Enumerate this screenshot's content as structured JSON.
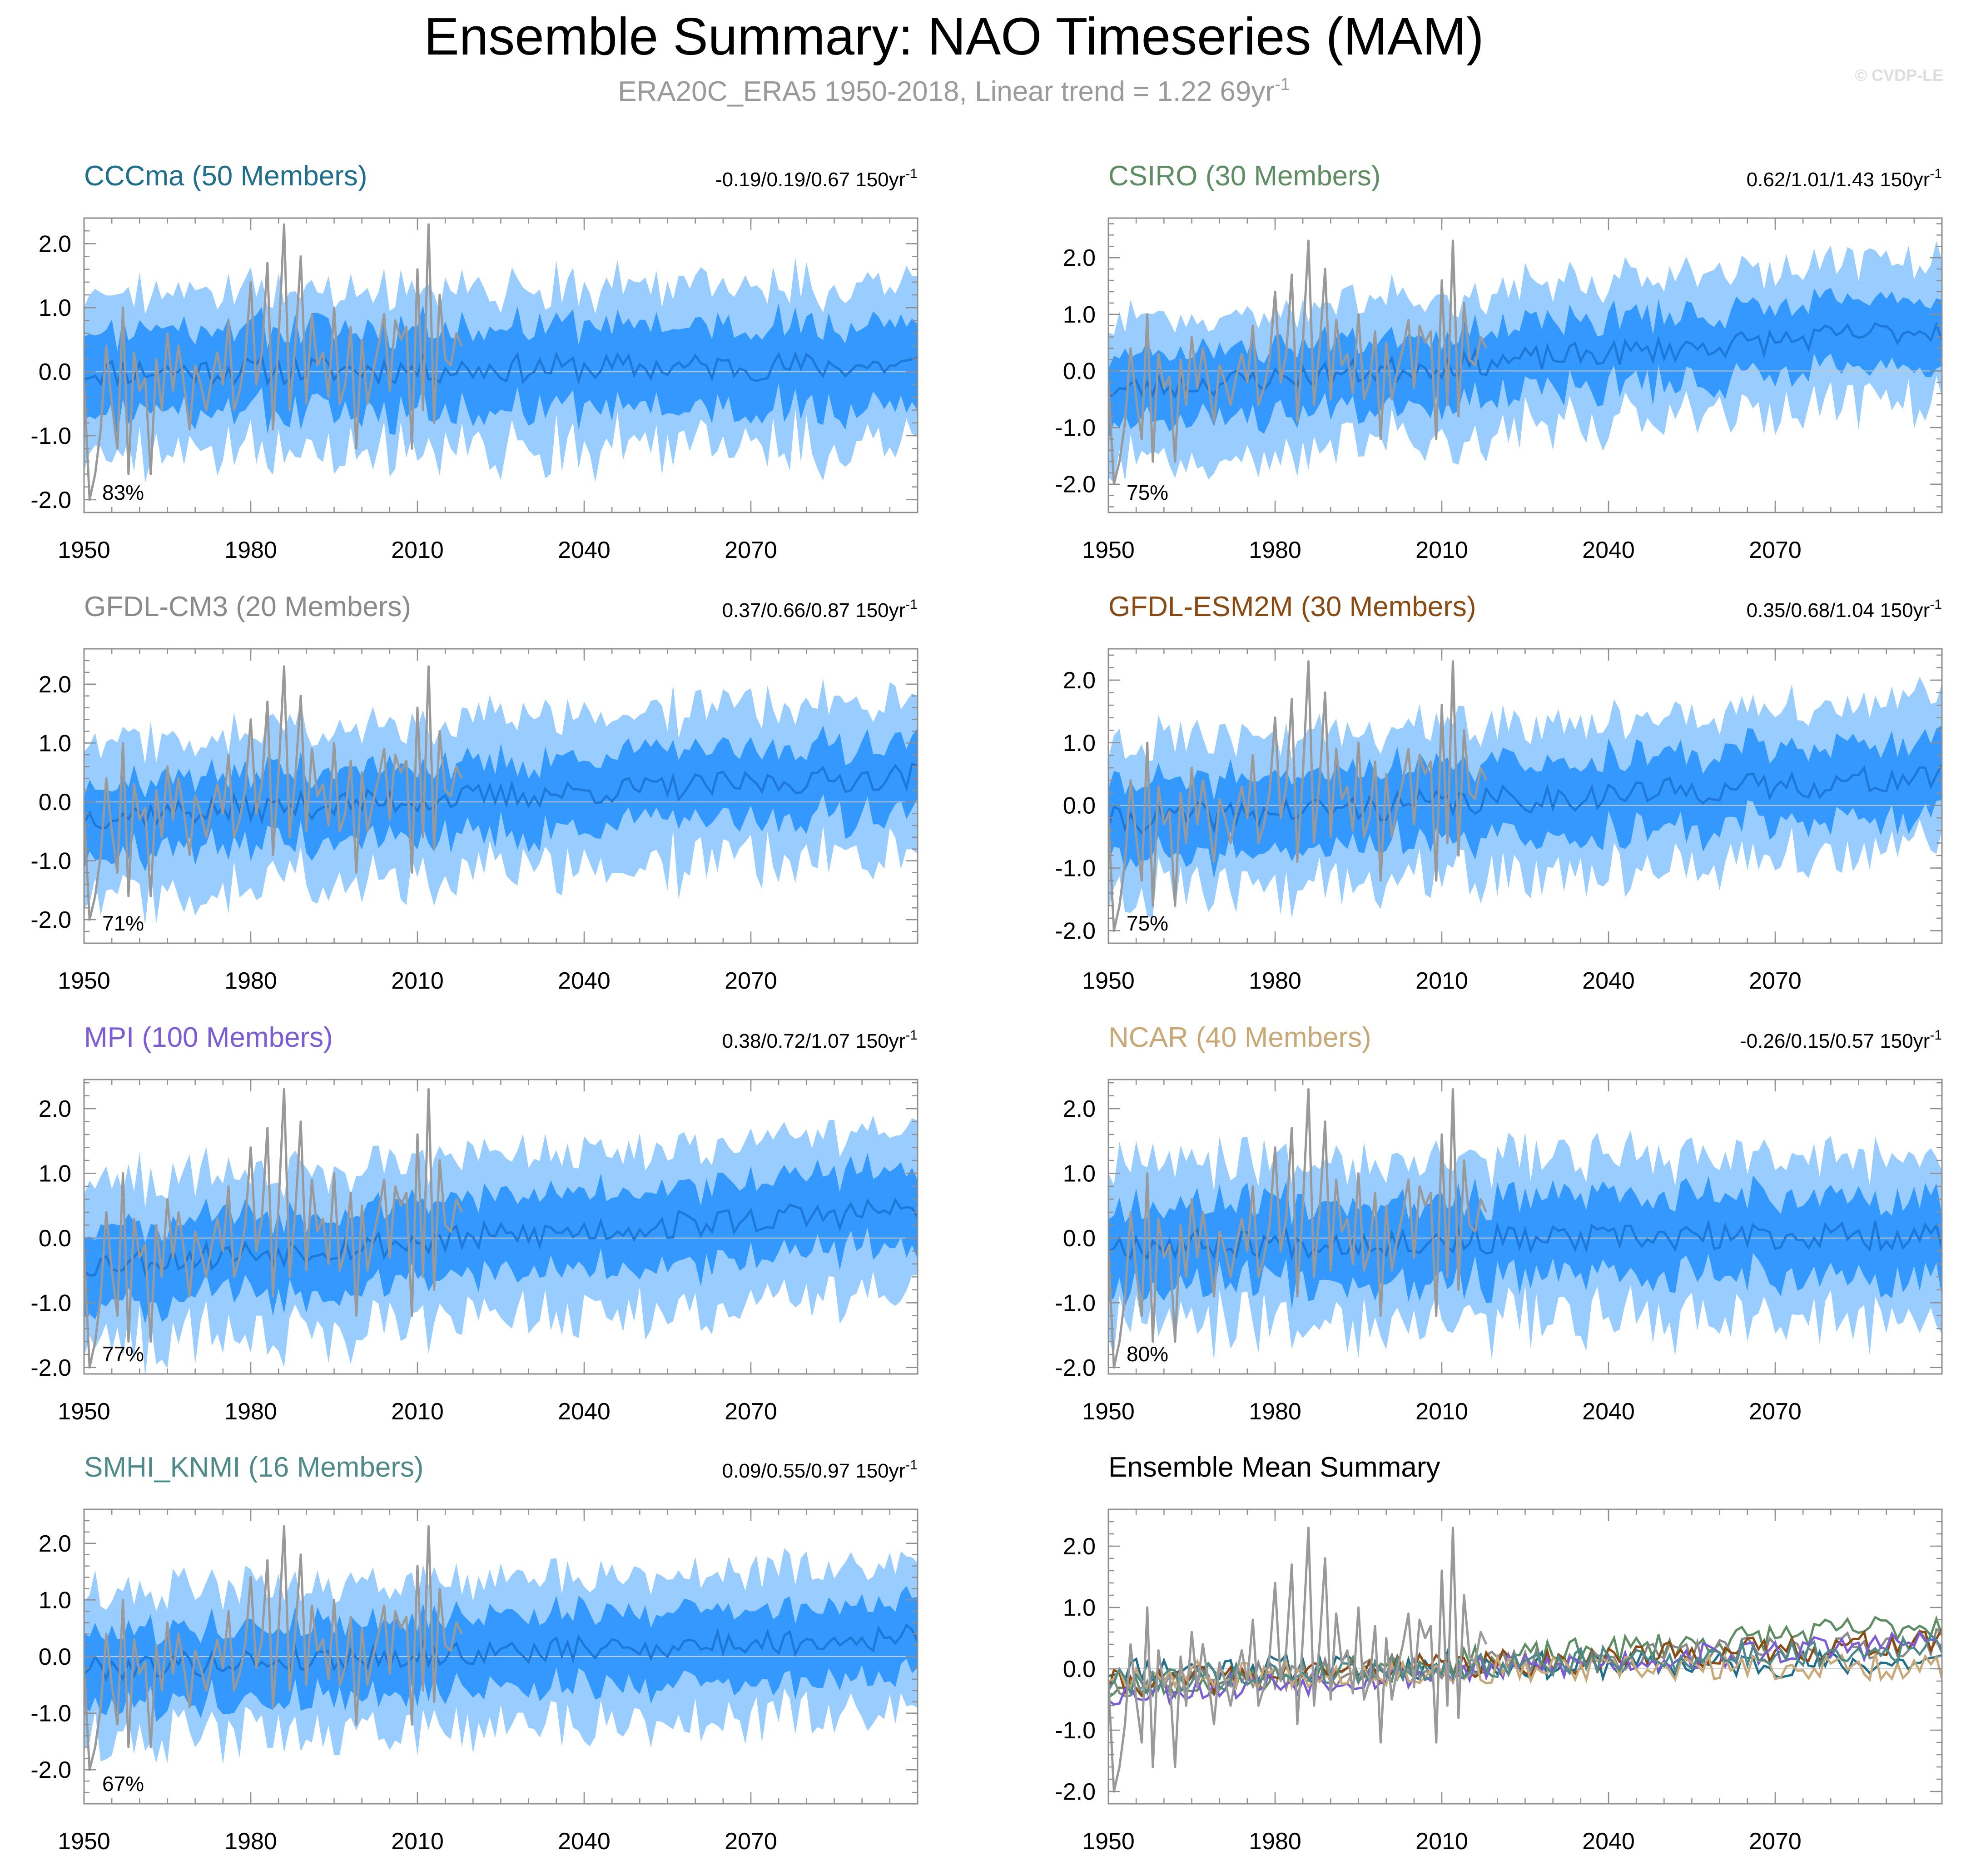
{
  "title": "Ensemble Summary: NAO Timeseries (MAM)",
  "subtitle": "ERA20C_ERA5 1950-2018, Linear trend = 1.22 69yr",
  "subtitle_sup": "-1",
  "watermark": "© CVDP-LE",
  "colors": {
    "outer_band": "#99ccff",
    "inner_band": "#3399ff",
    "ensemble_mean": "#1e78d8",
    "observations": "#999999",
    "zero_line": "#c8c8c8"
  },
  "chart_data": [
    {
      "type": "area",
      "name": "CCCma",
      "title": "CCCma (50 Members)",
      "title_color": "#1f6e8c",
      "stats": "-0.19/0.19/0.67 150yr",
      "stats_sup": "-1",
      "percent_label": "83%",
      "x_range": [
        1950,
        2100
      ],
      "ylim": [
        -2.2,
        2.4
      ],
      "yticks": [
        2.0,
        1.0,
        0.0,
        -1.0,
        -2.0
      ],
      "ytick_labels": [
        "2.0",
        "1.0",
        "0.0",
        "-1.0",
        "-2.0"
      ],
      "xticks": [
        1950,
        1980,
        2010,
        2040,
        2070
      ],
      "xtick_labels": [
        "1950",
        "1980",
        "2010",
        "2040",
        "2070"
      ],
      "trend_start": 0.0,
      "trend_end": 0.1,
      "inner_halfwidth": 0.65,
      "outer_halfwidth": 1.25,
      "seed": 11
    },
    {
      "type": "area",
      "name": "CSIRO",
      "title": "CSIRO (30 Members)",
      "title_color": "#5e8c63",
      "stats": "0.62/1.01/1.43 150yr",
      "stats_sup": "-1",
      "percent_label": "75%",
      "x_range": [
        1950,
        2100
      ],
      "ylim": [
        -2.5,
        2.7
      ],
      "yticks": [
        2.0,
        1.0,
        0.0,
        -1.0,
        -2.0
      ],
      "ytick_labels": [
        "2.0",
        "1.0",
        "0.0",
        "-1.0",
        "-2.0"
      ],
      "xticks": [
        1950,
        1980,
        2010,
        2040,
        2070
      ],
      "xtick_labels": [
        "1950",
        "1980",
        "2010",
        "2040",
        "2070"
      ],
      "trend_start": -0.35,
      "trend_end": 0.75,
      "inner_halfwidth": 0.6,
      "outer_halfwidth": 1.25,
      "seed": 23
    },
    {
      "type": "area",
      "name": "GFDL-CM3",
      "title": "GFDL-CM3 (20 Members)",
      "title_color": "#8a8a8a",
      "stats": "0.37/0.66/0.87 150yr",
      "stats_sup": "-1",
      "percent_label": "71%",
      "x_range": [
        1950,
        2100
      ],
      "ylim": [
        -2.4,
        2.6
      ],
      "yticks": [
        2.0,
        1.0,
        0.0,
        -1.0,
        -2.0
      ],
      "ytick_labels": [
        "2.0",
        "1.0",
        "0.0",
        "-1.0",
        "-2.0"
      ],
      "xticks": [
        1950,
        1980,
        2010,
        2040,
        2070
      ],
      "xtick_labels": [
        "1950",
        "1980",
        "2010",
        "2040",
        "2070"
      ],
      "trend_start": -0.25,
      "trend_end": 0.45,
      "inner_halfwidth": 0.6,
      "outer_halfwidth": 1.3,
      "seed": 37
    },
    {
      "type": "area",
      "name": "GFDL-ESM2M",
      "title": "GFDL-ESM2M (30 Members)",
      "title_color": "#8b4a12",
      "stats": "0.35/0.68/1.04 150yr",
      "stats_sup": "-1",
      "percent_label": "75%",
      "x_range": [
        1950,
        2100
      ],
      "ylim": [
        -2.2,
        2.5
      ],
      "yticks": [
        2.0,
        1.0,
        0.0,
        -1.0,
        -2.0
      ],
      "ytick_labels": [
        "2.0",
        "1.0",
        "0.0",
        "-1.0",
        "-2.0"
      ],
      "xticks": [
        1950,
        1980,
        2010,
        2040,
        2070
      ],
      "xtick_labels": [
        "1950",
        "1980",
        "2010",
        "2040",
        "2070"
      ],
      "trend_start": -0.25,
      "trend_end": 0.45,
      "inner_halfwidth": 0.6,
      "outer_halfwidth": 1.2,
      "seed": 41
    },
    {
      "type": "area",
      "name": "MPI",
      "title": "MPI (100 Members)",
      "title_color": "#7b5bd6",
      "stats": "0.38/0.72/1.07 150yr",
      "stats_sup": "-1",
      "percent_label": "77%",
      "x_range": [
        1950,
        2100
      ],
      "ylim": [
        -2.1,
        2.45
      ],
      "yticks": [
        2.0,
        1.0,
        0.0,
        -1.0,
        -2.0
      ],
      "ytick_labels": [
        "2.0",
        "1.0",
        "0.0",
        "-1.0",
        "-2.0"
      ],
      "xticks": [
        1950,
        1980,
        2010,
        2040,
        2070
      ],
      "xtick_labels": [
        "1950",
        "1980",
        "2010",
        "2040",
        "2070"
      ],
      "trend_start": -0.4,
      "trend_end": 0.45,
      "inner_halfwidth": 0.6,
      "outer_halfwidth": 1.25,
      "seed": 53
    },
    {
      "type": "area",
      "name": "NCAR",
      "title": "NCAR (40 Members)",
      "title_color": "#c9a878",
      "stats": "-0.26/0.15/0.57 150yr",
      "stats_sup": "-1",
      "percent_label": "80%",
      "x_range": [
        1950,
        2100
      ],
      "ylim": [
        -2.1,
        2.45
      ],
      "yticks": [
        2.0,
        1.0,
        0.0,
        -1.0,
        -2.0
      ],
      "ytick_labels": [
        "2.0",
        "1.0",
        "0.0",
        "-1.0",
        "-2.0"
      ],
      "xticks": [
        1950,
        1980,
        2010,
        2040,
        2070
      ],
      "xtick_labels": [
        "1950",
        "1980",
        "2010",
        "2040",
        "2070"
      ],
      "trend_start": -0.1,
      "trend_end": 0.05,
      "inner_halfwidth": 0.62,
      "outer_halfwidth": 1.25,
      "seed": 67
    },
    {
      "type": "area",
      "name": "SMHI_KNMI",
      "title": "SMHI_KNMI (16 Members)",
      "title_color": "#4f8a8b",
      "stats": "0.09/0.55/0.97 150yr",
      "stats_sup": "-1",
      "percent_label": "67%",
      "x_range": [
        1950,
        2100
      ],
      "ylim": [
        -2.6,
        2.6
      ],
      "yticks": [
        2.0,
        1.0,
        0.0,
        -1.0,
        -2.0
      ],
      "ytick_labels": [
        "2.0",
        "1.0",
        "0.0",
        "-1.0",
        "-2.0"
      ],
      "xticks": [
        1950,
        1980,
        2010,
        2040,
        2070
      ],
      "xtick_labels": [
        "1950",
        "1980",
        "2010",
        "2040",
        "2070"
      ],
      "trend_start": -0.2,
      "trend_end": 0.35,
      "inner_halfwidth": 0.65,
      "outer_halfwidth": 1.3,
      "seed": 79
    },
    {
      "type": "line",
      "name": "Ensemble Mean Summary",
      "title": "Ensemble Mean Summary",
      "title_color": "#000000",
      "x_range": [
        1950,
        2100
      ],
      "ylim": [
        -2.2,
        2.6
      ],
      "yticks": [
        2.0,
        1.0,
        0.0,
        -1.0,
        -2.0
      ],
      "ytick_labels": [
        "2.0",
        "1.0",
        "0.0",
        "-1.0",
        "-2.0"
      ],
      "xticks": [
        1950,
        1980,
        2010,
        2040,
        2070
      ],
      "xtick_labels": [
        "1950",
        "1980",
        "2010",
        "2040",
        "2070"
      ],
      "series": [
        {
          "name": "CCCma",
          "color": "#1f6e8c",
          "trend_start": 0.0,
          "trend_end": 0.1,
          "seed": 11
        },
        {
          "name": "CSIRO",
          "color": "#5e8c63",
          "trend_start": -0.35,
          "trend_end": 0.75,
          "seed": 23
        },
        {
          "name": "GFDL-CM3",
          "color": "#8a8a8a",
          "trend_start": -0.25,
          "trend_end": 0.45,
          "seed": 37
        },
        {
          "name": "GFDL-ESM2M",
          "color": "#8b4a12",
          "trend_start": -0.25,
          "trend_end": 0.45,
          "seed": 41
        },
        {
          "name": "MPI",
          "color": "#7b5bd6",
          "trend_start": -0.4,
          "trend_end": 0.45,
          "seed": 53
        },
        {
          "name": "NCAR",
          "color": "#c9a878",
          "trend_start": -0.1,
          "trend_end": 0.05,
          "seed": 67
        },
        {
          "name": "SMHI_KNMI",
          "color": "#4f8a8b",
          "trend_start": -0.2,
          "trend_end": 0.35,
          "seed": 79
        }
      ]
    }
  ],
  "observations": {
    "name": "ERA20C_ERA5",
    "years": [
      1950,
      2018
    ],
    "values": [
      -0.2,
      -2.0,
      -1.6,
      -0.9,
      0.4,
      -0.5,
      -1.2,
      1.0,
      -1.6,
      0.3,
      -0.3,
      -0.1,
      -1.6,
      0.2,
      -0.6,
      0.6,
      -0.3,
      0.4,
      -0.2,
      -0.9,
      0.1,
      -0.2,
      -0.6,
      -0.1,
      0.3,
      -0.2,
      0.8,
      -0.6,
      -0.3,
      0.2,
      1.4,
      -0.2,
      0.3,
      1.7,
      -0.9,
      0.5,
      2.3,
      -0.6,
      0.4,
      1.8,
      -0.5,
      0.9,
      0.1,
      0.3,
      -0.4,
      1.0,
      -0.5,
      -0.2,
      0.7,
      -1.2,
      0.5,
      -0.5,
      0.0,
      0.4,
      0.9,
      -0.3,
      0.8,
      0.5,
      0.7,
      -1.2,
      1.6,
      -0.6,
      2.3,
      -0.8,
      1.2,
      0.2,
      0.1,
      0.6,
      0.4
    ]
  }
}
